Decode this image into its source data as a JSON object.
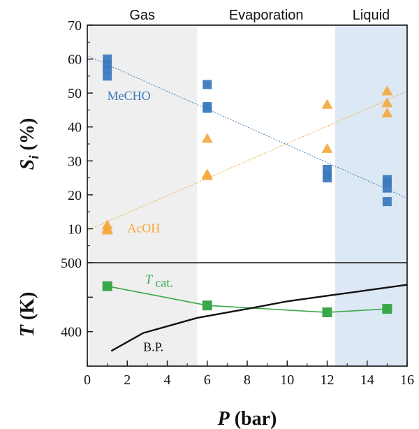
{
  "chart_data": [
    {
      "type": "scatter",
      "panel": "selectivity",
      "ylabel_main": "S",
      "ylabel_sub": "i",
      "ylabel_rest": " (%)",
      "ylim": [
        0,
        70
      ],
      "yticks": [
        0,
        10,
        20,
        30,
        40,
        50,
        60,
        70
      ],
      "regions": [
        {
          "name": "Gas",
          "x_range": [
            0,
            5.5
          ],
          "color": "#efefef"
        },
        {
          "name": "Evaporation",
          "x_range": [
            5.5,
            12.4
          ],
          "color": "#ffffff"
        },
        {
          "name": "Liquid",
          "x_range": [
            12.4,
            16
          ],
          "color": "#dde8f5"
        }
      ],
      "series": [
        {
          "name": "MeCHO",
          "color": "#3d7abf",
          "marker": "square",
          "points": [
            [
              1,
              60
            ],
            [
              1,
              58.5
            ],
            [
              1,
              57
            ],
            [
              1,
              55
            ],
            [
              6,
              52.5
            ],
            [
              6,
              46
            ],
            [
              6,
              45.5
            ],
            [
              12,
              27.5
            ],
            [
              12,
              26
            ],
            [
              12,
              25
            ],
            [
              15,
              24.5
            ],
            [
              15,
              23.5
            ],
            [
              15,
              22
            ],
            [
              15,
              18
            ]
          ],
          "trend": [
            [
              0,
              61
            ],
            [
              16,
              19
            ]
          ]
        },
        {
          "name": "AcOH",
          "color": "#f4a93b",
          "marker": "triangle",
          "points": [
            [
              1,
              11
            ],
            [
              1,
              10
            ],
            [
              1,
              9.5
            ],
            [
              6,
              36.5
            ],
            [
              6,
              26
            ],
            [
              6,
              25.5
            ],
            [
              12,
              46.5
            ],
            [
              12,
              33.5
            ],
            [
              15,
              50.5
            ],
            [
              15,
              47
            ],
            [
              15,
              44
            ]
          ],
          "trend": [
            [
              0,
              9.5
            ],
            [
              16,
              50.5
            ]
          ]
        }
      ]
    },
    {
      "type": "line",
      "panel": "temperature",
      "ylabel": "T (K)",
      "ylim": [
        350,
        500
      ],
      "yticks": [
        400,
        500
      ],
      "xlabel_main": "P",
      "xlabel_rest": " (bar)",
      "xlim": [
        0,
        16
      ],
      "xticks": [
        0,
        2,
        4,
        6,
        8,
        10,
        12,
        14,
        16
      ],
      "series": [
        {
          "name": "T",
          "name_sub": "cat.",
          "color": "#3aa84a",
          "marker": "square",
          "points": [
            [
              1,
              466
            ],
            [
              6,
              438
            ],
            [
              12,
              428
            ],
            [
              15,
              433
            ]
          ]
        },
        {
          "name": "B.P.",
          "color": "#111111",
          "marker": "none",
          "points": [
            [
              1.2,
              372
            ],
            [
              2.8,
              398
            ],
            [
              5.5,
              420
            ],
            [
              8,
              433
            ],
            [
              10,
              444
            ],
            [
              12,
              452
            ],
            [
              14,
              460
            ],
            [
              16,
              468
            ]
          ]
        }
      ]
    }
  ]
}
